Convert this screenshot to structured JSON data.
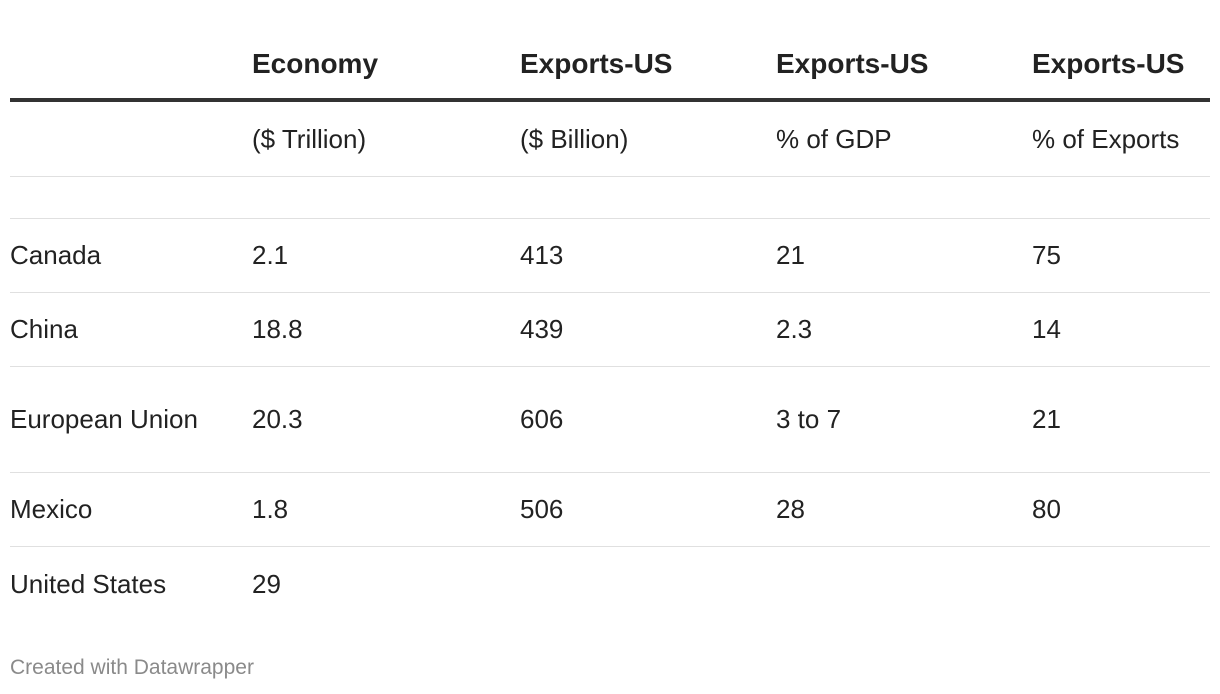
{
  "chart_data": {
    "type": "table",
    "columns": [
      {
        "header": "",
        "unit": ""
      },
      {
        "header": "Economy",
        "unit": "($ Trillion)"
      },
      {
        "header": "Exports-US",
        "unit": "($ Billion)"
      },
      {
        "header": "Exports-US",
        "unit": "% of GDP"
      },
      {
        "header": "Exports-US",
        "unit": "% of Exports"
      }
    ],
    "rows": [
      {
        "country": "Canada",
        "economy": "2.1",
        "exports_billion": "413",
        "pct_gdp": "21",
        "pct_exports": "75"
      },
      {
        "country": "China",
        "economy": "18.8",
        "exports_billion": "439",
        "pct_gdp": "2.3",
        "pct_exports": "14"
      },
      {
        "country": "European Union",
        "economy": "20.3",
        "exports_billion": "606",
        "pct_gdp": "3 to 7",
        "pct_exports": "21"
      },
      {
        "country": "Mexico",
        "economy": "1.8",
        "exports_billion": "506",
        "pct_gdp": "28",
        "pct_exports": "80"
      },
      {
        "country": "United States",
        "economy": "29",
        "exports_billion": "",
        "pct_gdp": "",
        "pct_exports": ""
      }
    ]
  },
  "footer": {
    "credit": "Created with Datawrapper"
  }
}
